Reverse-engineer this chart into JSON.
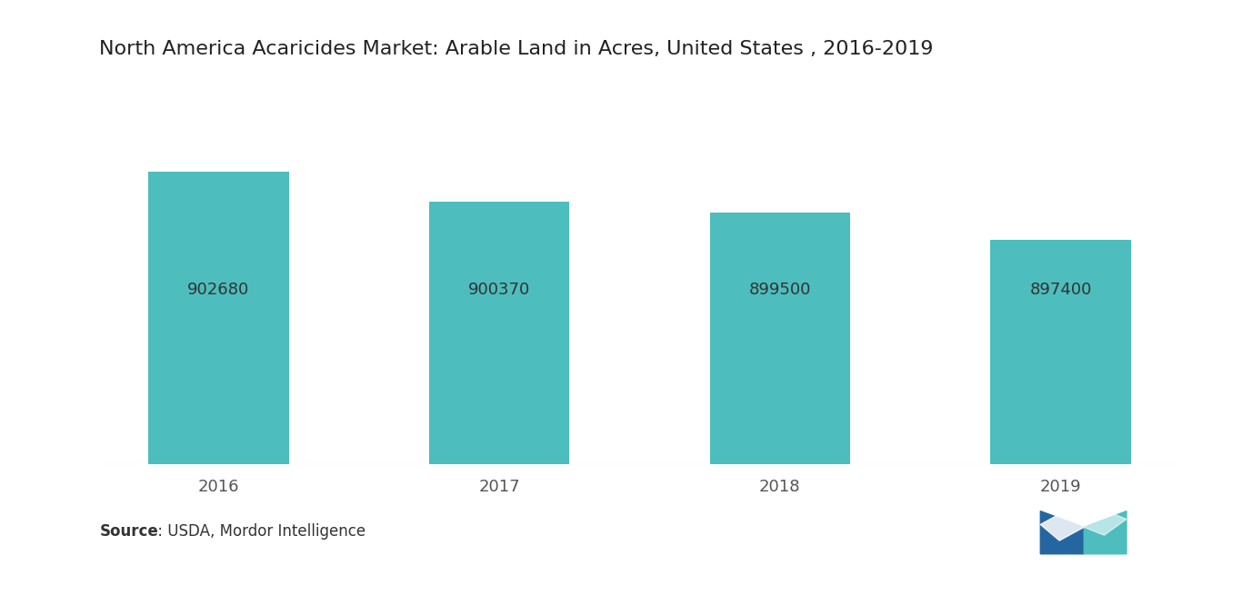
{
  "title": "North America Acaricides Market: Arable Land in Acres, United States , 2016-2019",
  "categories": [
    "2016",
    "2017",
    "2018",
    "2019"
  ],
  "values": [
    902680,
    900370,
    899500,
    897400
  ],
  "bar_color": "#4dbdbd",
  "label_color": "#333333",
  "background_color": "#ffffff",
  "title_fontsize": 16,
  "label_fontsize": 13,
  "tick_fontsize": 13,
  "source_bold": "Source",
  "source_rest": " : USDA, Mordor Intelligence",
  "ylim_min": 880000,
  "ylim_max": 910000,
  "bar_width": 0.5
}
